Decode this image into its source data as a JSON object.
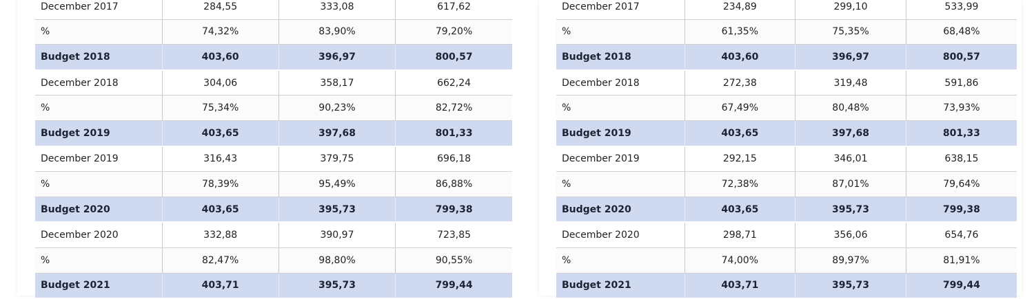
{
  "tables": [
    {
      "rows": [
        {
          "type": "dec",
          "label": "December 2017",
          "v1": "284,55",
          "v2": "333,08",
          "v3": "617,62"
        },
        {
          "type": "pct",
          "label": "%",
          "v1": "74,32%",
          "v2": "83,90%",
          "v3": "79,20%"
        },
        {
          "type": "budget",
          "label": "Budget  2018",
          "v1": "403,60",
          "v2": "396,97",
          "v3": "800,57"
        },
        {
          "type": "dec",
          "label": "December 2018",
          "v1": "304,06",
          "v2": "358,17",
          "v3": "662,24"
        },
        {
          "type": "pct",
          "label": "%",
          "v1": "75,34%",
          "v2": "90,23%",
          "v3": "82,72%"
        },
        {
          "type": "budget",
          "label": "Budget  2019",
          "v1": "403,65",
          "v2": "397,68",
          "v3": "801,33"
        },
        {
          "type": "dec",
          "label": "December 2019",
          "v1": "316,43",
          "v2": "379,75",
          "v3": "696,18"
        },
        {
          "type": "pct",
          "label": "%",
          "v1": "78,39%",
          "v2": "95,49%",
          "v3": "86,88%"
        },
        {
          "type": "budget",
          "label": "Budget  2020",
          "v1": "403,65",
          "v2": "395,73",
          "v3": "799,38"
        },
        {
          "type": "dec",
          "label": "December 2020",
          "v1": "332,88",
          "v2": "390,97",
          "v3": "723,85"
        },
        {
          "type": "pct",
          "label": "%",
          "v1": "82,47%",
          "v2": "98,80%",
          "v3": "90,55%"
        },
        {
          "type": "budget",
          "label": "Budget  2021",
          "v1": "403,71",
          "v2": "395,73",
          "v3": "799,44"
        }
      ]
    },
    {
      "rows": [
        {
          "type": "dec",
          "label": "December 2017",
          "v1": "234,89",
          "v2": "299,10",
          "v3": "533,99"
        },
        {
          "type": "pct",
          "label": "%",
          "v1": "61,35%",
          "v2": "75,35%",
          "v3": "68,48%"
        },
        {
          "type": "budget",
          "label": "Budget  2018",
          "v1": "403,60",
          "v2": "396,97",
          "v3": "800,57"
        },
        {
          "type": "dec",
          "label": "December 2018",
          "v1": "272,38",
          "v2": "319,48",
          "v3": "591,86"
        },
        {
          "type": "pct",
          "label": "%",
          "v1": "67,49%",
          "v2": "80,48%",
          "v3": "73,93%"
        },
        {
          "type": "budget",
          "label": "Budget  2019",
          "v1": "403,65",
          "v2": "397,68",
          "v3": "801,33"
        },
        {
          "type": "dec",
          "label": "December 2019",
          "v1": "292,15",
          "v2": "346,01",
          "v3": "638,15"
        },
        {
          "type": "pct",
          "label": "%",
          "v1": "72,38%",
          "v2": "87,01%",
          "v3": "79,64%"
        },
        {
          "type": "budget",
          "label": "Budget  2020",
          "v1": "403,65",
          "v2": "395,73",
          "v3": "799,38"
        },
        {
          "type": "dec",
          "label": "December 2020",
          "v1": "298,71",
          "v2": "356,06",
          "v3": "654,76"
        },
        {
          "type": "pct",
          "label": "%",
          "v1": "74,00%",
          "v2": "89,97%",
          "v3": "81,91%"
        },
        {
          "type": "budget",
          "label": "Budget  2021",
          "v1": "403,71",
          "v2": "395,73",
          "v3": "799,44"
        }
      ]
    }
  ],
  "colors": {
    "budget_row_bg": "#cfdaf0",
    "grid_line": "#cfcfcf"
  }
}
